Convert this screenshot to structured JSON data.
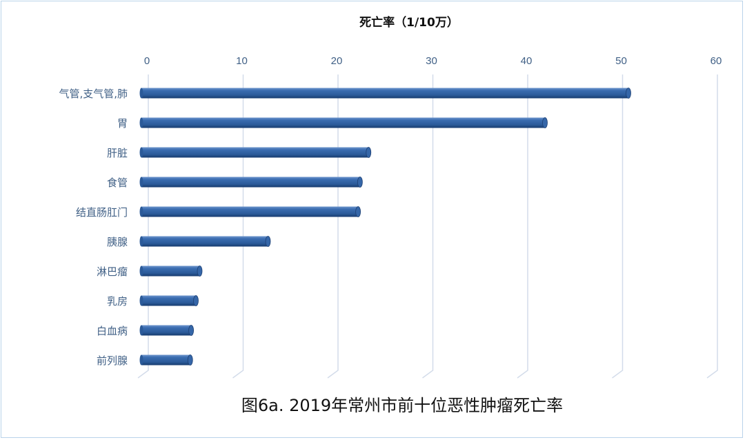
{
  "chart_data": {
    "type": "bar",
    "orientation": "horizontal",
    "style": "3d-cylinder",
    "title": "死亡率（1/10万）",
    "caption": "图6a. 2019年常州市前十位恶性肿瘤死亡率",
    "categories": [
      "气管,支气管,肺",
      "胃",
      "肝脏",
      "食管",
      "结直肠肛门",
      "胰腺",
      "淋巴瘤",
      "乳房",
      "白血病",
      "前列腺"
    ],
    "values": [
      51.2,
      42.4,
      23.8,
      22.9,
      22.7,
      13.2,
      6.0,
      5.6,
      5.1,
      5.0
    ],
    "xlim": [
      0,
      60
    ],
    "xticks": [
      0,
      10,
      20,
      30,
      40,
      50,
      60
    ],
    "axis_position": "top",
    "grid": true,
    "colors": {
      "bar": "#2e5e9e",
      "grid": "#d3dcea",
      "tick": "#3f5f85",
      "border": "#b9d3ea"
    }
  }
}
